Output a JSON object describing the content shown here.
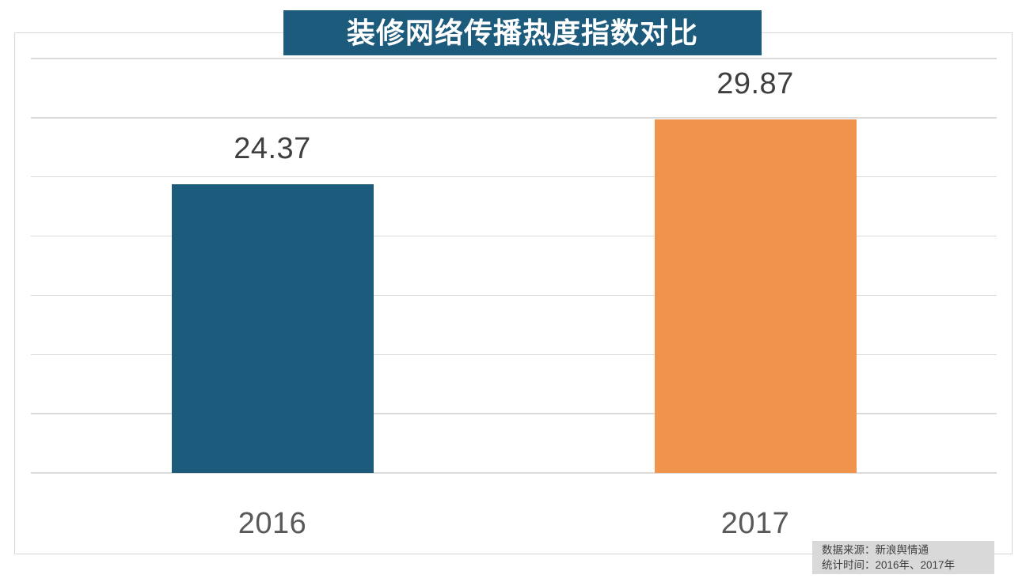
{
  "title": "装修网络传播热度指数对比",
  "source_note": {
    "line1": "数据来源：新浪舆情通",
    "line2": "统计时间：2016年、2017年"
  },
  "colors": {
    "title_bg": "#1d5b7c",
    "gridline": "#dadada",
    "panel_border": "#d7d7d7",
    "value_label_text": "#3f3f3f",
    "axis_label_text": "#595959",
    "note_bg": "#d9d9d9",
    "note_text": "#404040"
  },
  "chart_data": {
    "type": "bar",
    "title": "装修网络传播热度指数对比",
    "categories": [
      "2016",
      "2017"
    ],
    "values": [
      24.37,
      29.87
    ],
    "series_colors": [
      "#1d5b7c",
      "#f0934c"
    ],
    "value_labels": [
      "24.37",
      "29.87"
    ],
    "xlabel": "",
    "ylabel": "",
    "ylim": [
      0,
      35
    ],
    "grid_interval": 5,
    "grid": true,
    "legend": false,
    "data_labels_position": "above-bar"
  }
}
